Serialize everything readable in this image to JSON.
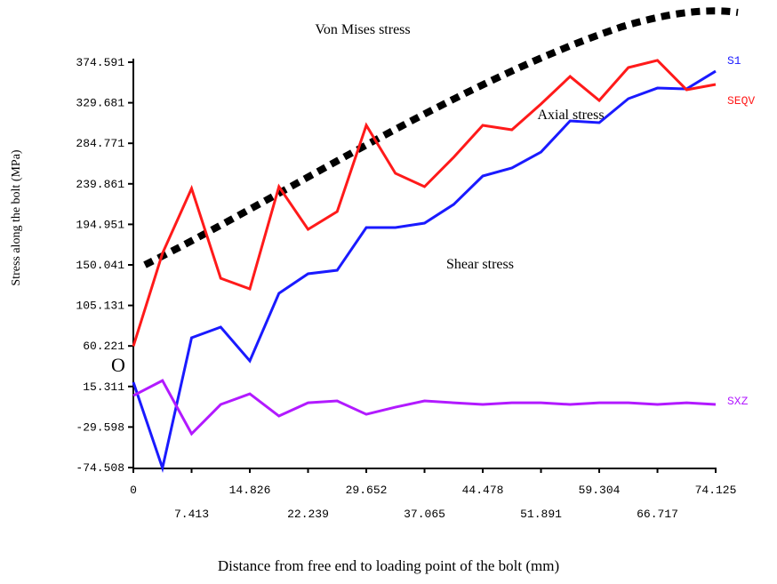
{
  "chart_data": {
    "type": "line",
    "title": "Von Mises stress",
    "xlabel": "Distance from free end to loading point of the bolt (mm)",
    "ylabel": "Stress along the bolt  (MPa)",
    "annotations": [
      "Axial stress",
      "Shear stress",
      "O"
    ],
    "x": [
      0,
      3.706,
      7.413,
      11.119,
      14.826,
      18.532,
      22.239,
      25.945,
      29.652,
      33.358,
      37.065,
      40.771,
      44.478,
      48.184,
      51.891,
      55.597,
      59.304,
      63.01,
      66.717,
      70.423,
      74.125
    ],
    "series": [
      {
        "name": "S1",
        "color": "#1a1aff",
        "values": [
          20,
          -75,
          69.3,
          81.1,
          43.7,
          118.5,
          140.2,
          144.1,
          191.4,
          191.4,
          196.3,
          217,
          248.5,
          257.4,
          275.1,
          309.6,
          307.6,
          334.2,
          346,
          345,
          364.7
        ]
      },
      {
        "name": "SEQV",
        "color": "#ff1a1a",
        "values": [
          60,
          162.8,
          234.7,
          135.2,
          123.4,
          236.7,
          189.4,
          209.1,
          304.7,
          251.5,
          236.7,
          269.2,
          304.7,
          299.7,
          328.3,
          358.8,
          332.2,
          368.7,
          376.6,
          344.1,
          350
        ]
      },
      {
        "name": "SXZ",
        "color": "#b21aff",
        "values": [
          5.2,
          21.9,
          -37.1,
          -4.6,
          7.2,
          -17.4,
          -2.7,
          -0.7,
          -15.5,
          -7.6,
          -0.7,
          -2.7,
          -4.6,
          -2.7,
          -2.7,
          -4.6,
          -2.7,
          -2.7,
          -4.6,
          -2.7,
          -4.6
        ]
      }
    ],
    "xlim": [
      0,
      74.125
    ],
    "xticks": [
      0,
      7.413,
      14.826,
      22.239,
      29.652,
      37.065,
      44.478,
      51.891,
      59.304,
      66.717,
      74.125
    ],
    "ylim": [
      -74.508,
      374.591
    ],
    "yticks": [
      -74.508,
      -29.598,
      15.311,
      60.221,
      105.131,
      150.041,
      194.951,
      239.861,
      284.771,
      329.681,
      374.591
    ]
  }
}
